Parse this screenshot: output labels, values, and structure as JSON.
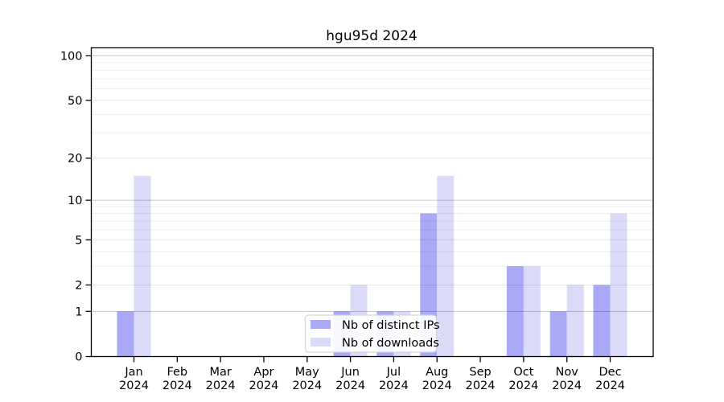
{
  "title": "hgu95d 2024",
  "colors": {
    "bar_distinct_ips": "#a9a9f6",
    "bar_downloads": "#dbdbf8",
    "frame": "#000000",
    "grid_major": "rgba(0,0,0,0.22)",
    "grid_mid": "rgba(0,0,0,0.10)",
    "grid_minor": "rgba(0,0,0,0.065)",
    "legend_border": "#d5d5d5",
    "legend_background": "rgba(255,255,255,0.9)"
  },
  "chart_data": {
    "type": "bar",
    "title": "hgu95d 2024",
    "x_categories": [
      {
        "month": "Jan",
        "year": "2024"
      },
      {
        "month": "Feb",
        "year": "2024"
      },
      {
        "month": "Mar",
        "year": "2024"
      },
      {
        "month": "Apr",
        "year": "2024"
      },
      {
        "month": "May",
        "year": "2024"
      },
      {
        "month": "Jun",
        "year": "2024"
      },
      {
        "month": "Jul",
        "year": "2024"
      },
      {
        "month": "Aug",
        "year": "2024"
      },
      {
        "month": "Sep",
        "year": "2024"
      },
      {
        "month": "Oct",
        "year": "2024"
      },
      {
        "month": "Nov",
        "year": "2024"
      },
      {
        "month": "Dec",
        "year": "2024"
      }
    ],
    "series": [
      {
        "name": "Nb of distinct IPs",
        "color": "#a9a9f6",
        "values": [
          1,
          0,
          0,
          0,
          0,
          1,
          1,
          8,
          0,
          3,
          1,
          2
        ]
      },
      {
        "name": "Nb of downloads",
        "color": "#dbdbf8",
        "values": [
          15,
          0,
          0,
          0,
          0,
          2,
          1,
          15,
          0,
          3,
          2,
          8
        ]
      }
    ],
    "y_scale": "log10(value+1)",
    "y_ticks": [
      0,
      1,
      2,
      5,
      10,
      20,
      50,
      100
    ],
    "y_major_gridlines": [
      1,
      10,
      100
    ],
    "ylim": [
      0,
      114
    ],
    "grid": "on",
    "legend_position": "bottom-center"
  }
}
